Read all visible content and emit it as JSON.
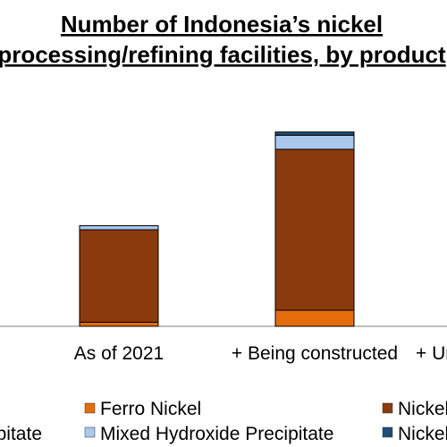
{
  "chart_data": {
    "type": "bar",
    "stacked": true,
    "title": [
      "Number of Indonesia’s nickel",
      "processing/refining facilities, by product"
    ],
    "categories": [
      "As of 2021",
      "+ Being constructed",
      "+ Under planning"
    ],
    "series": [
      {
        "name": "Ferro Nickel",
        "color": "#E46C0A",
        "values": [
          1,
          4,
          null
        ]
      },
      {
        "name": "Nickel Pig Iron",
        "color": "#8B3A0E",
        "values": [
          23,
          40,
          null
        ]
      },
      {
        "name": "Mixed Hydroxide Precipitate",
        "color": "#A9C8EE",
        "values": [
          1,
          3.5,
          null
        ]
      },
      {
        "name": "Nickel Matte",
        "color": "#1F4E79",
        "values": [
          0,
          0.8,
          null
        ]
      }
    ],
    "legend_position": "bottom",
    "grid": false,
    "ylim": [
      0,
      50
    ]
  }
}
